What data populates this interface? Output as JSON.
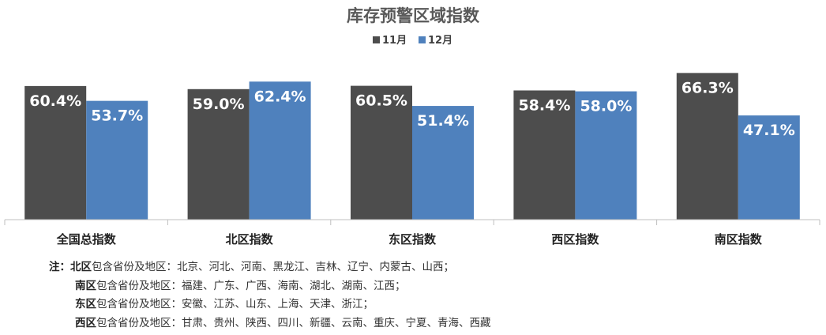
{
  "chart_data": {
    "type": "bar",
    "title": "库存预警区域指数",
    "categories": [
      "全国总指数",
      "北区指数",
      "东区指数",
      "西区指数",
      "南区指数"
    ],
    "series": [
      {
        "name": "11月",
        "color": "#4d4d4d",
        "values": [
          60.4,
          59.0,
          60.5,
          58.4,
          66.3
        ],
        "labels": [
          "60.4%",
          "59.0%",
          "60.5%",
          "58.4%",
          "66.3%"
        ]
      },
      {
        "name": "12月",
        "color": "#4f81bd",
        "values": [
          53.7,
          62.4,
          51.4,
          58.0,
          47.1
        ],
        "labels": [
          "53.7%",
          "62.4%",
          "51.4%",
          "58.0%",
          "47.1%"
        ]
      }
    ],
    "ylim": [
      0,
      70
    ],
    "legend": "top-center",
    "grid": false
  },
  "notes": {
    "prefix": "注：",
    "lines": [
      {
        "region": "北区",
        "text": "包含省份及地区：北京、河北、河南、黑龙江、吉林、辽宁、内蒙古、山西；"
      },
      {
        "region": "南区",
        "text": "包含省份及地区：福建、广东、广西、海南、湖北、湖南、江西；"
      },
      {
        "region": "东区",
        "text": "包含省份及地区：安徽、江苏、山东、上海、天津、浙江；"
      },
      {
        "region": "西区",
        "text": "包含省份及地区：甘肃、贵州、陕西、四川、新疆、云南、重庆、宁夏、青海、西藏"
      }
    ]
  }
}
